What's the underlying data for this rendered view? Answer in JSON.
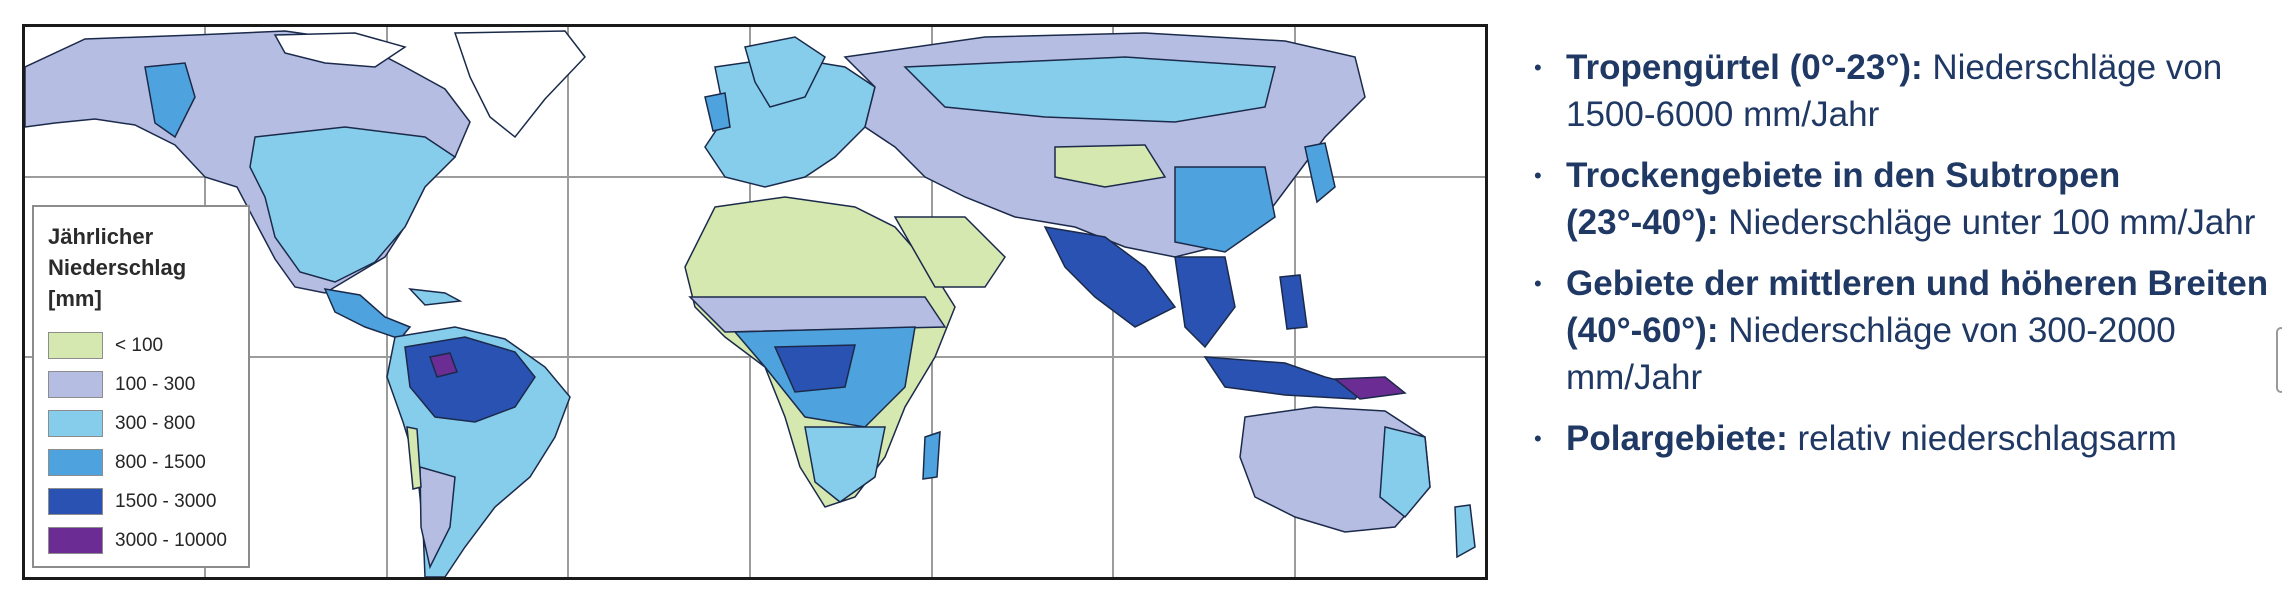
{
  "legend": {
    "title_lines": [
      "Jährlicher",
      "Niederschlag",
      "[mm]"
    ],
    "classes": [
      {
        "label": "< 100",
        "color": "#d5e8b0"
      },
      {
        "label": "100 - 300",
        "color": "#b6bde3"
      },
      {
        "label": "300 - 800",
        "color": "#86cdec"
      },
      {
        "label": "800 - 1500",
        "color": "#4ea2dd"
      },
      {
        "label": "1500 - 3000",
        "color": "#2a52b3"
      },
      {
        "label": "3000 - 10000",
        "color": "#6b2d93"
      }
    ]
  },
  "colors": {
    "ocean": "#ffffff",
    "graticule": "#9c9c9c",
    "border": "#1b2a4a",
    "text": "#1f3864"
  },
  "bullets": [
    {
      "bold": "Tropengürtel (0°-23°):",
      "text": " Niederschläge von 1500-6000 mm/Jahr"
    },
    {
      "bold": "Trockengebiete in den Subtropen (23°-40°):",
      "text": " Niederschläge unter 100 mm/Jahr"
    },
    {
      "bold": "Gebiete der mittleren und höheren Breiten (40°-60°):",
      "text": " Niederschläge von 300-2000 mm/Jahr"
    },
    {
      "bold": "Polargebiete:",
      "text": " relativ niederschlagsarm"
    }
  ]
}
